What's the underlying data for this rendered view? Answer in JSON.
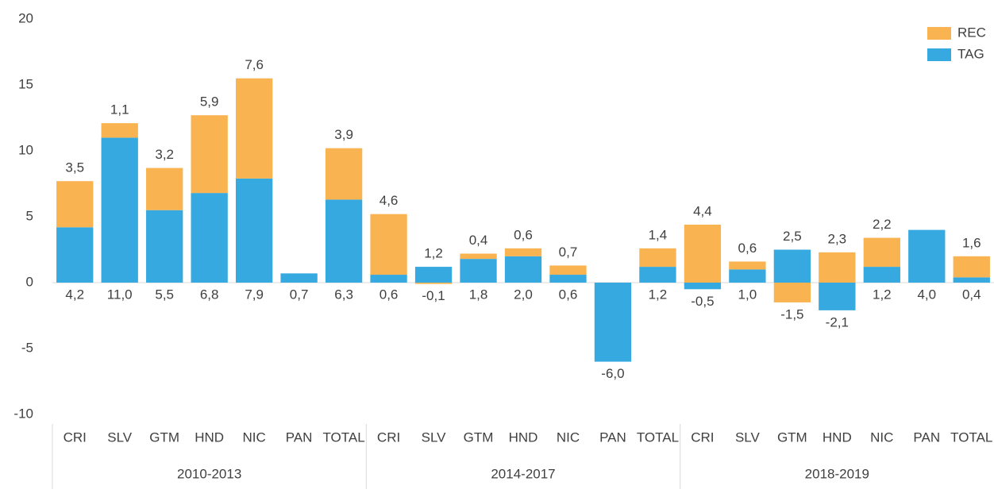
{
  "chart_data": {
    "type": "stacked_bar",
    "categories": [
      "CRI",
      "SLV",
      "GTM",
      "HND",
      "NIC",
      "PAN",
      "TOTAL",
      "CRI",
      "SLV",
      "GTM",
      "HND",
      "NIC",
      "PAN",
      "TOTAL",
      "CRI",
      "SLV",
      "GTM",
      "HND",
      "NIC",
      "PAN",
      "TOTAL"
    ],
    "groups": [
      "2010-2013",
      "2014-2017",
      "2018-2019"
    ],
    "series": [
      {
        "name": "TAG",
        "color": "#35a9e0",
        "values": [
          4.2,
          11.0,
          5.5,
          6.8,
          7.9,
          0.7,
          6.3,
          0.6,
          1.2,
          1.8,
          2.0,
          0.6,
          -6.0,
          1.2,
          -0.5,
          1.0,
          2.5,
          -2.1,
          1.2,
          4.0,
          0.4
        ],
        "value_labels": [
          "4,2",
          "11,0",
          "5,5",
          "6,8",
          "7,9",
          "0,7",
          "6,3",
          "0,6",
          "1,2",
          "1,8",
          "2,0",
          "0,6",
          "-6,0",
          "1,2",
          "-0,5",
          "1,0",
          "2,5",
          "-2,1",
          "1,2",
          "4,0",
          "0,4"
        ]
      },
      {
        "name": "REC",
        "color": "#f9b350",
        "values": [
          3.5,
          1.1,
          3.2,
          5.9,
          7.6,
          null,
          3.9,
          4.6,
          -0.1,
          0.4,
          0.6,
          0.7,
          null,
          1.4,
          4.4,
          0.6,
          -1.5,
          2.3,
          2.2,
          null,
          1.6
        ],
        "value_labels": [
          "3,5",
          "1,1",
          "3,2",
          "5,9",
          "7,6",
          null,
          "3,9",
          "4,6",
          "-0,1",
          "0,4",
          "0,6",
          "0,7",
          null,
          "1,4",
          "4,4",
          "0,6",
          "-1,5",
          "2,3",
          "2,2",
          null,
          "1,6"
        ]
      }
    ],
    "ylim": [
      -10,
      20
    ],
    "yticks": [
      -10,
      -5,
      0,
      5,
      10,
      15,
      20
    ],
    "grid": false,
    "legend": "top-right"
  }
}
